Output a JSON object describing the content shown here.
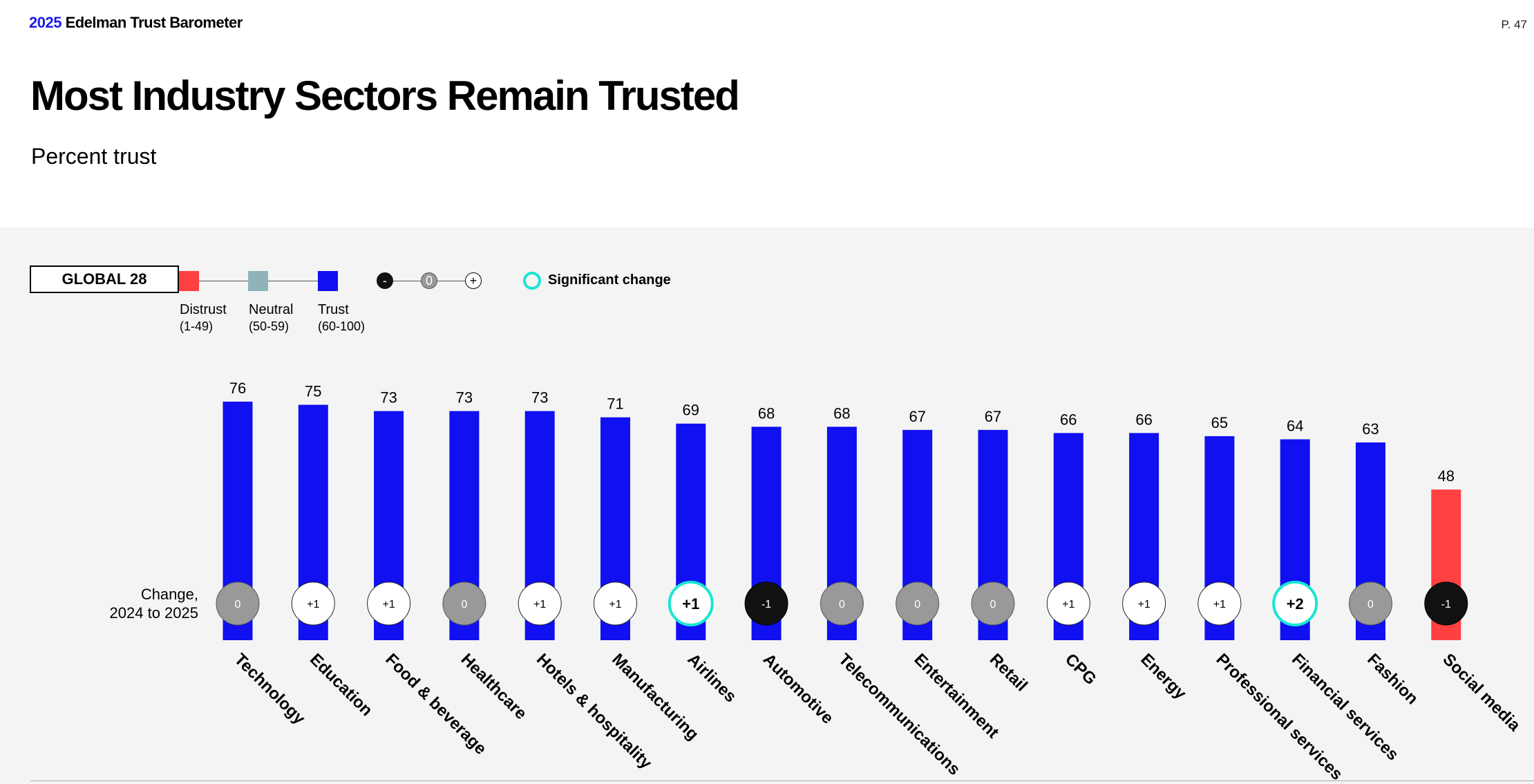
{
  "header": {
    "brand_year": "2025",
    "brand_name": " Edelman Trust Barometer",
    "page_number": "P. 47"
  },
  "chart_data": {
    "type": "bar",
    "title": "Most Industry Sectors Remain Trusted",
    "subtitle": "Percent trust",
    "scope_label": "GLOBAL 28",
    "categories": [
      "Technology",
      "Education",
      "Food & beverage",
      "Healthcare",
      "Hotels & hospitality",
      "Manufacturing",
      "Airlines",
      "Automotive",
      "Telecommunications",
      "Entertainment",
      "Retail",
      "CPG",
      "Energy",
      "Professional services",
      "Financial services",
      "Fashion",
      "Social media"
    ],
    "values": [
      76,
      75,
      73,
      73,
      73,
      71,
      69,
      68,
      68,
      67,
      67,
      66,
      66,
      65,
      64,
      63,
      48
    ],
    "changes": [
      "0",
      "+1",
      "+1",
      "0",
      "+1",
      "+1",
      "+1",
      "-1",
      "0",
      "0",
      "0",
      "+1",
      "+1",
      "+1",
      "+2",
      "0",
      "-1"
    ],
    "significant": [
      false,
      false,
      false,
      false,
      false,
      false,
      true,
      false,
      false,
      false,
      false,
      false,
      false,
      false,
      true,
      false,
      false
    ],
    "change_label_line1": "Change,",
    "change_label_line2": "2024 to 2025",
    "ylim": [
      0,
      100
    ],
    "legend": {
      "distrust_name": "Distrust",
      "distrust_range": "(1-49)",
      "neutral_name": "Neutral",
      "neutral_range": "(50-59)",
      "trust_name": "Trust",
      "trust_range": "(60-100)",
      "minus_symbol": "-",
      "zero_symbol": "0",
      "plus_symbol": "+",
      "significant_label": "Significant change"
    },
    "colors": {
      "trust": "#1010f0",
      "neutral": "#8fb3ba",
      "distrust": "#ff4040",
      "significant": "#19e6d2",
      "positive_fill": "#ffffff",
      "negative_fill": "#111111",
      "zero_fill": "#999999"
    }
  }
}
